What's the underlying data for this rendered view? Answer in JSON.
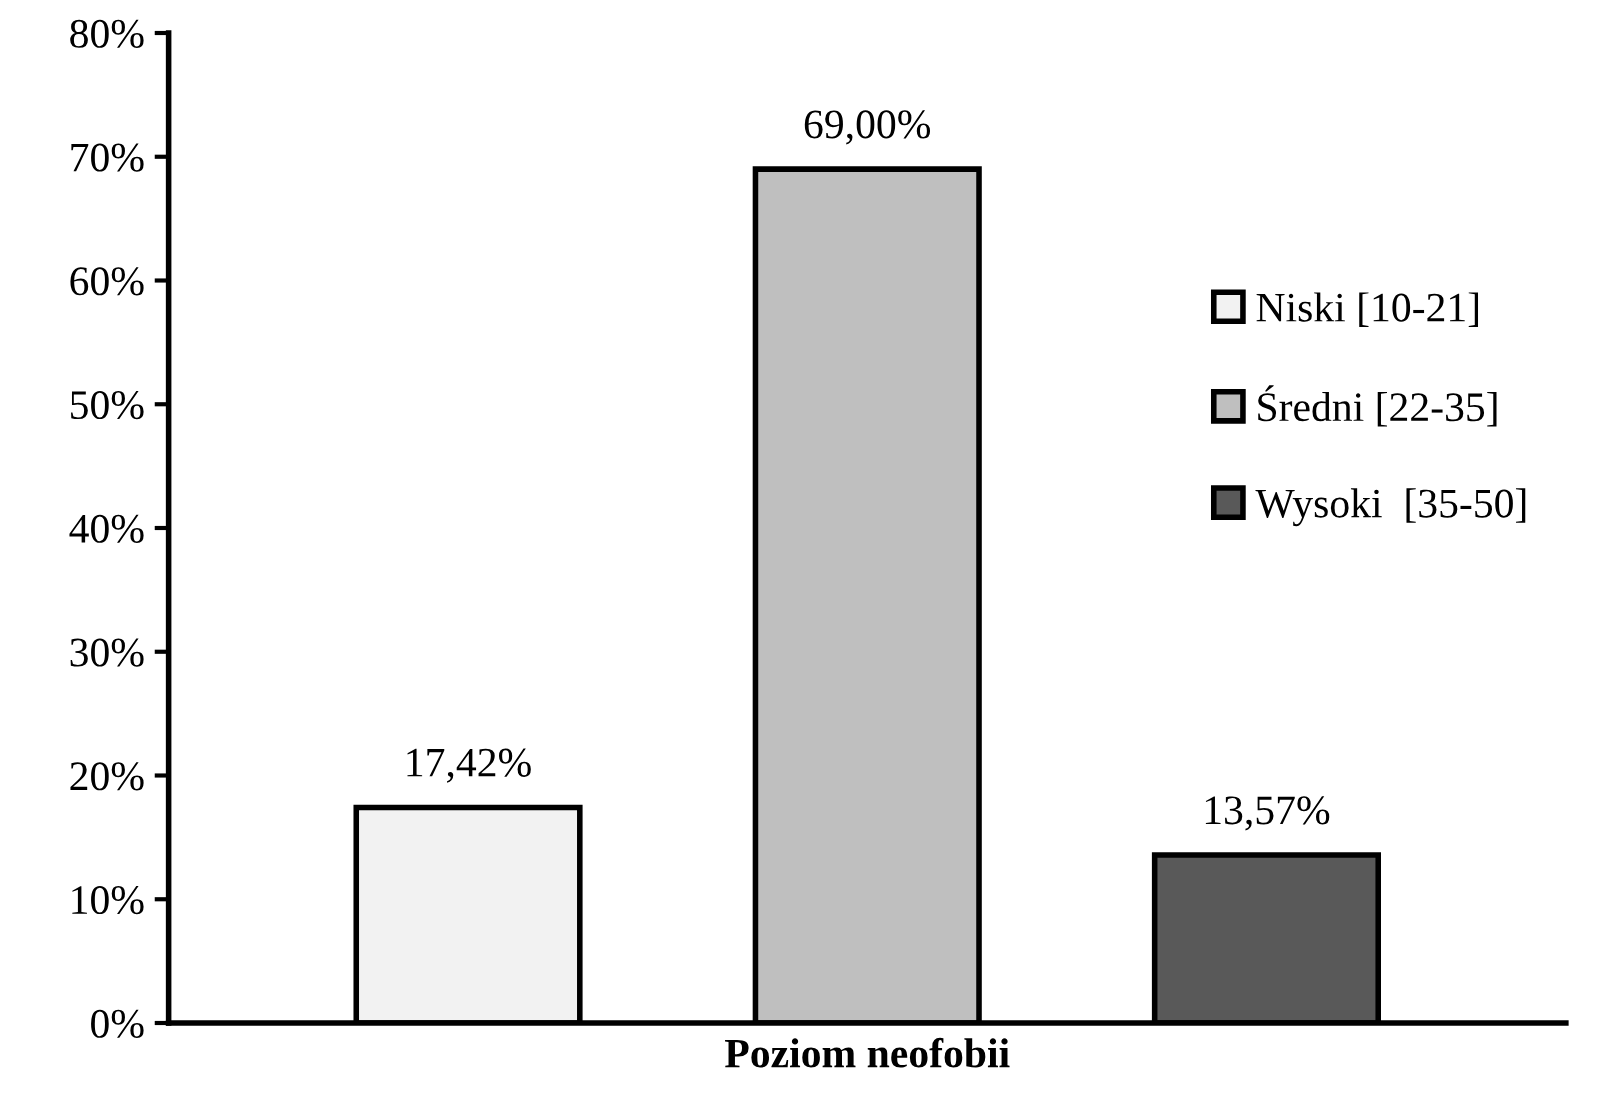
{
  "chart_data": {
    "type": "bar",
    "xlabel": "Poziom neofobii",
    "categories": [
      null,
      null,
      null
    ],
    "series": [
      {
        "name": "Niski [10-21]",
        "color": "#f2f2f2",
        "values": [
          17.42,
          null,
          null
        ],
        "value_labels": [
          "17,42%",
          null,
          null
        ]
      },
      {
        "name": "Średni [22-35]",
        "color": "#bfbfbf",
        "values": [
          null,
          69.0,
          null
        ],
        "value_labels": [
          null,
          "69,00%",
          null
        ]
      },
      {
        "name": "Wysoki  [35-50]",
        "color": "#595959",
        "values": [
          null,
          null,
          13.57
        ],
        "value_labels": [
          null,
          null,
          "13,57%"
        ]
      }
    ],
    "ylim": [
      0,
      80
    ],
    "yticks": [
      {
        "value": 0,
        "label": "0%"
      },
      {
        "value": 10,
        "label": "10%"
      },
      {
        "value": 20,
        "label": "20%"
      },
      {
        "value": 30,
        "label": "30%"
      },
      {
        "value": 40,
        "label": "40%"
      },
      {
        "value": 50,
        "label": "50%"
      },
      {
        "value": 60,
        "label": "60%"
      },
      {
        "value": 70,
        "label": "70%"
      },
      {
        "value": 80,
        "label": "80%"
      }
    ],
    "grid": false,
    "legend": "right"
  }
}
